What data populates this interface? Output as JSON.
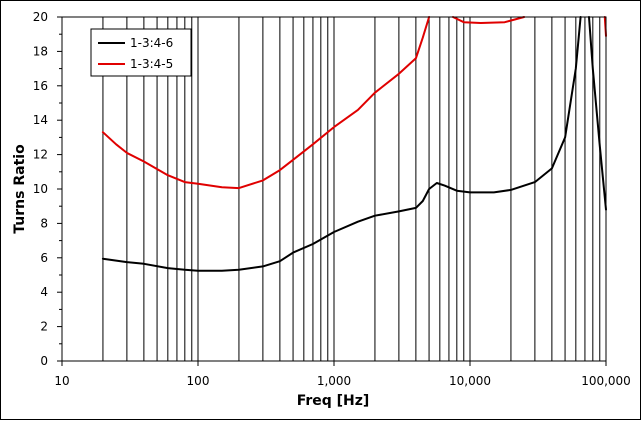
{
  "chart_data": {
    "type": "line",
    "title": "",
    "xlabel": "Freq [Hz]",
    "ylabel": "Turns Ratio",
    "x_scale": "log",
    "xlim": [
      10,
      100000
    ],
    "ylim": [
      0,
      20
    ],
    "x_tick_labels": [
      "10",
      "100",
      "1,000",
      "10,000",
      "100,000"
    ],
    "x_tick_values": [
      10,
      100,
      1000,
      10000,
      100000
    ],
    "y_tick_values": [
      0,
      2,
      4,
      6,
      8,
      10,
      12,
      14,
      16,
      18,
      20
    ],
    "y_tick_labels": [
      "0",
      "2",
      "4",
      "6",
      "8",
      "10",
      "12",
      "14",
      "16",
      "18",
      "20"
    ],
    "grid": {
      "vertical_minor": true,
      "horizontal": false
    },
    "legend_position": "top-left",
    "series": [
      {
        "name": "1-3:4-6",
        "color": "#000000",
        "points": [
          [
            20,
            5.95
          ],
          [
            30,
            5.75
          ],
          [
            40,
            5.65
          ],
          [
            60,
            5.4
          ],
          [
            80,
            5.3
          ],
          [
            100,
            5.25
          ],
          [
            150,
            5.25
          ],
          [
            200,
            5.3
          ],
          [
            300,
            5.5
          ],
          [
            400,
            5.8
          ],
          [
            500,
            6.3
          ],
          [
            700,
            6.8
          ],
          [
            1000,
            7.5
          ],
          [
            1500,
            8.1
          ],
          [
            2000,
            8.45
          ],
          [
            3000,
            8.7
          ],
          [
            4000,
            8.9
          ],
          [
            4500,
            9.3
          ],
          [
            5000,
            10.0
          ],
          [
            5700,
            10.35
          ],
          [
            6500,
            10.2
          ],
          [
            8000,
            9.9
          ],
          [
            10000,
            9.8
          ],
          [
            15000,
            9.8
          ],
          [
            20000,
            9.95
          ],
          [
            30000,
            10.4
          ],
          [
            40000,
            11.2
          ],
          [
            50000,
            13.0
          ],
          [
            60000,
            17.0
          ],
          [
            65000,
            20.0
          ]
        ]
      },
      {
        "name": "1-3:4-5",
        "color": "#e00000",
        "points": [
          [
            20,
            13.3
          ],
          [
            25,
            12.6
          ],
          [
            30,
            12.1
          ],
          [
            40,
            11.6
          ],
          [
            60,
            10.8
          ],
          [
            80,
            10.4
          ],
          [
            100,
            10.3
          ],
          [
            150,
            10.1
          ],
          [
            200,
            10.05
          ],
          [
            300,
            10.5
          ],
          [
            400,
            11.1
          ],
          [
            500,
            11.7
          ],
          [
            700,
            12.6
          ],
          [
            1000,
            13.6
          ],
          [
            1500,
            14.6
          ],
          [
            2000,
            15.6
          ],
          [
            3000,
            16.7
          ],
          [
            4000,
            17.6
          ],
          [
            4500,
            18.8
          ],
          [
            5000,
            20.0
          ]
        ]
      },
      {
        "name": "",
        "color": "#e00000",
        "points": [
          [
            7500,
            20.0
          ],
          [
            9000,
            19.7
          ],
          [
            12000,
            19.65
          ],
          [
            18000,
            19.7
          ],
          [
            25000,
            20.0
          ]
        ]
      },
      {
        "name": "",
        "color": "#000000",
        "points": [
          [
            75000,
            20.0
          ],
          [
            80000,
            17.0
          ],
          [
            90000,
            12.5
          ],
          [
            100000,
            8.8
          ]
        ]
      },
      {
        "name": "",
        "color": "#e00000",
        "points": [
          [
            98000,
            20.0
          ],
          [
            100000,
            18.9
          ]
        ]
      }
    ]
  }
}
